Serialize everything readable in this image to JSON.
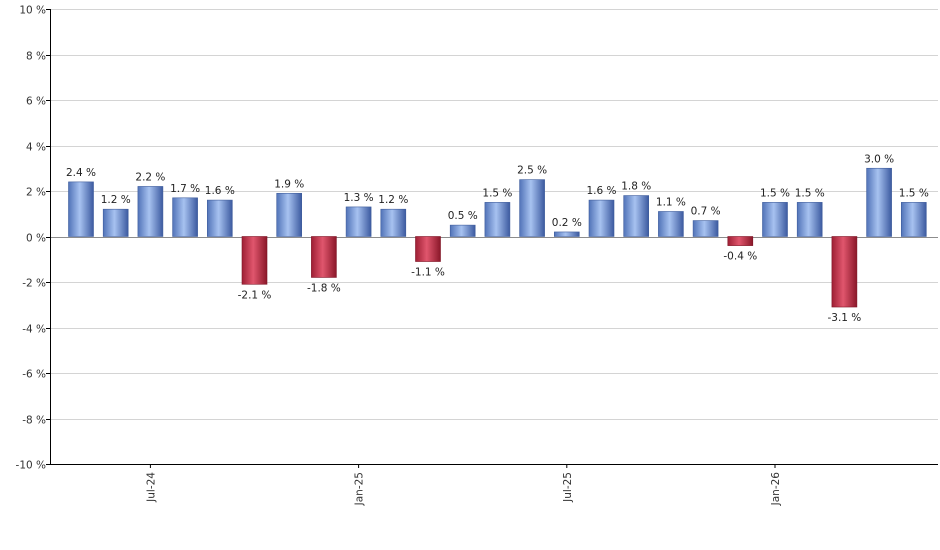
{
  "chart_data": {
    "type": "bar",
    "title": "",
    "xlabel": "",
    "ylabel": "",
    "ylim": [
      -10,
      10
    ],
    "y_ticks": [
      10,
      8,
      6,
      4,
      2,
      0,
      -2,
      -4,
      -6,
      -8,
      -10
    ],
    "y_tick_suffix": " %",
    "grid": true,
    "colors": {
      "positive": "#6b8fd6",
      "negative": "#c8384f"
    },
    "bars": [
      {
        "value": 2.4,
        "label": "2.4 %"
      },
      {
        "value": 1.2,
        "label": "1.2 %"
      },
      {
        "value": 2.2,
        "label": "2.2 %"
      },
      {
        "value": 1.7,
        "label": "1.7 %"
      },
      {
        "value": 1.6,
        "label": "1.6 %"
      },
      {
        "value": -2.1,
        "label": "-2.1 %"
      },
      {
        "value": 1.9,
        "label": "1.9 %"
      },
      {
        "value": -1.8,
        "label": "-1.8 %"
      },
      {
        "value": 1.3,
        "label": "1.3 %"
      },
      {
        "value": 1.2,
        "label": "1.2 %"
      },
      {
        "value": -1.1,
        "label": "-1.1 %"
      },
      {
        "value": 0.5,
        "label": "0.5 %"
      },
      {
        "value": 1.5,
        "label": "1.5 %"
      },
      {
        "value": 2.5,
        "label": "2.5 %"
      },
      {
        "value": 0.2,
        "label": "0.2 %"
      },
      {
        "value": 1.6,
        "label": "1.6 %"
      },
      {
        "value": 1.8,
        "label": "1.8 %"
      },
      {
        "value": 1.1,
        "label": "1.1 %"
      },
      {
        "value": 0.7,
        "label": "0.7 %"
      },
      {
        "value": -0.4,
        "label": "-0.4 %"
      },
      {
        "value": 1.5,
        "label": "1.5 %"
      },
      {
        "value": 1.5,
        "label": "1.5 %"
      },
      {
        "value": -3.1,
        "label": "-3.1 %"
      },
      {
        "value": 3.0,
        "label": "3.0 %"
      },
      {
        "value": 1.5,
        "label": "1.5 %"
      }
    ],
    "x_tick_labels": [
      {
        "bar_index": 2,
        "label": "Jul-24"
      },
      {
        "bar_index": 8,
        "label": "Jan-25"
      },
      {
        "bar_index": 14,
        "label": "Jul-25"
      },
      {
        "bar_index": 20,
        "label": "Jan-26"
      }
    ]
  }
}
